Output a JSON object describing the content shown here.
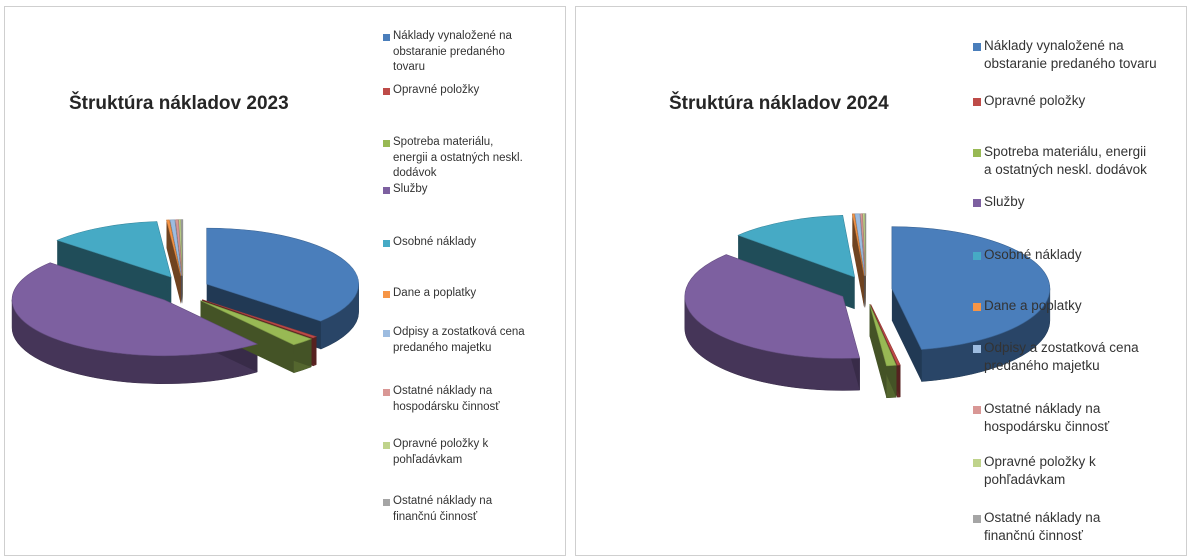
{
  "chart_data": [
    {
      "type": "pie",
      "title": "Štruktúra nákladov 2023",
      "categories": [
        "Náklady vynaložené na obstaranie predaného tovaru",
        "Opravné položky",
        "Spotreba materiálu, energii a ostatných neskl. dodávok",
        "Služby",
        "Osobné náklady",
        "Dane a poplatky",
        "Odpisy a zostatková cena predaného majetku",
        "Ostatné náklady na hospodársku činnosť",
        "Opravné položky k pohľadávkam",
        "Ostatné náklady na finančnú činnosť"
      ],
      "values": [
        36.5,
        0.5,
        2.5,
        47.0,
        12.0,
        0.3,
        0.5,
        0.3,
        0.2,
        0.2
      ],
      "unit": "%",
      "exploded": true,
      "legend_position": "right"
    },
    {
      "type": "pie",
      "title": "Štruktúra nákladov 2024",
      "categories": [
        "Náklady vynaložené na obstaranie predaného tovaru",
        "Opravné položky",
        "Spotreba materiálu, energii a ostatných neskl. dodávok",
        "Služby",
        "Osobné náklady",
        "Dane a poplatky",
        "Odpisy a zostatková cena predaného majetku",
        "Ostatné náklady na hospodársku činnosť",
        "Opravné položky k pohľadávkam",
        "Ostatné náklady na finančnú činnosť"
      ],
      "values": [
        47.0,
        0.3,
        1.0,
        38.5,
        12.0,
        0.2,
        0.5,
        0.2,
        0.2,
        0.1
      ],
      "unit": "%",
      "exploded": true,
      "legend_position": "right"
    }
  ],
  "legend_labels": [
    {
      "items": [
        [
          "Náklady vynaložené na",
          "obstaranie predaného",
          "tovaru"
        ],
        [
          "Opravné položky"
        ],
        [
          "Spotreba materiálu,",
          "energii a ostatných neskl.",
          "dodávok"
        ],
        [
          "Služby"
        ],
        [
          "Osobné náklady"
        ],
        [
          "Dane a poplatky"
        ],
        [
          "Odpisy a zostatková cena",
          "predaného majetku"
        ],
        [
          "Ostatné náklady na",
          "hospodársku činnosť"
        ],
        [
          "Opravné položky k",
          "pohľadávkam"
        ],
        [
          "Ostatné náklady na",
          "finančnú činnosť"
        ]
      ]
    },
    {
      "items": [
        [
          "Náklady vynaložené na",
          "obstaranie predaného tovaru"
        ],
        [
          "Opravné položky"
        ],
        [
          "Spotreba materiálu, energii",
          "a ostatných neskl. dodávok"
        ],
        [
          "Služby"
        ],
        [
          "Osobné náklady"
        ],
        [
          "Dane a poplatky"
        ],
        [
          "Odpisy a zostatková cena",
          "predaného majetku"
        ],
        [
          "Ostatné náklady na",
          "hospodársku činnosť"
        ],
        [
          "Opravné položky k",
          "pohľadávkam"
        ],
        [
          "Ostatné náklady na",
          "finančnú činnosť"
        ]
      ]
    }
  ],
  "colors": [
    "#4a7ebb",
    "#be4b48",
    "#98b954",
    "#7d60a0",
    "#46aac5",
    "#f69546",
    "#9dbce0",
    "#d99795",
    "#bfd38b",
    "#a5a5a5"
  ]
}
